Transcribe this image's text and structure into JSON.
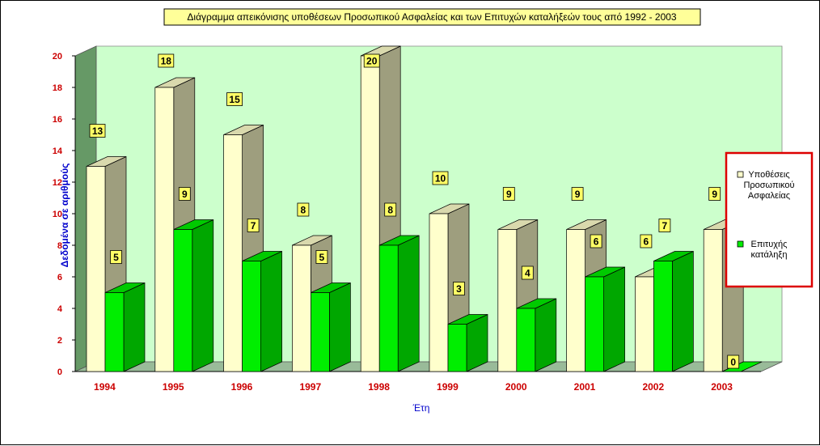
{
  "chart_data": {
    "type": "bar",
    "title": "Διάγραμμα απεικόνισης υποθέσεων Προσωπικού Ασφαλείας και των Επιτυχών καταλήξεών τους από 1992 - 2003",
    "xlabel": "Έτη",
    "ylabel": "Δεδομένα σε αριθμούς",
    "categories": [
      "1994",
      "1995",
      "1996",
      "1997",
      "1998",
      "1999",
      "2000",
      "2001",
      "2002",
      "2003"
    ],
    "ylim": [
      0,
      20
    ],
    "yticks": [
      "0",
      "2",
      "4",
      "6",
      "8",
      "10",
      "12",
      "14",
      "16",
      "18",
      "20"
    ],
    "grid": false,
    "legend_position": "right",
    "series": [
      {
        "name": "Υποθέσεις Προσωπικού Ασφαλείας",
        "values": [
          13,
          18,
          15,
          8,
          20,
          10,
          9,
          9,
          6,
          9
        ],
        "color": "#ffffcc"
      },
      {
        "name": "Επιτυχής κατάληξη",
        "values": [
          5,
          9,
          7,
          5,
          8,
          3,
          4,
          6,
          7,
          0
        ],
        "color": "#00ee00"
      }
    ],
    "data_labels": [
      [
        "13",
        "18",
        "15",
        "8",
        "20",
        "10",
        "9",
        "9",
        "6",
        "9"
      ],
      [
        "5",
        "9",
        "7",
        "5",
        "8",
        "3",
        "4",
        "6",
        "7",
        "0"
      ]
    ],
    "legend_lines": [
      [
        "Υποθέσεις",
        "Προσωπικού",
        "Ασφαλείας"
      ],
      [
        "Επιτυχής",
        "κατάληξη"
      ]
    ]
  },
  "colors": {
    "plot_back": "#ccffcc",
    "side_wall": "#669966",
    "floor": "#99bb99",
    "tick_text": "#cc0000",
    "axis_title": "#0000cc",
    "label_fill": "#ffff66",
    "legend_border": "#dd0000"
  }
}
